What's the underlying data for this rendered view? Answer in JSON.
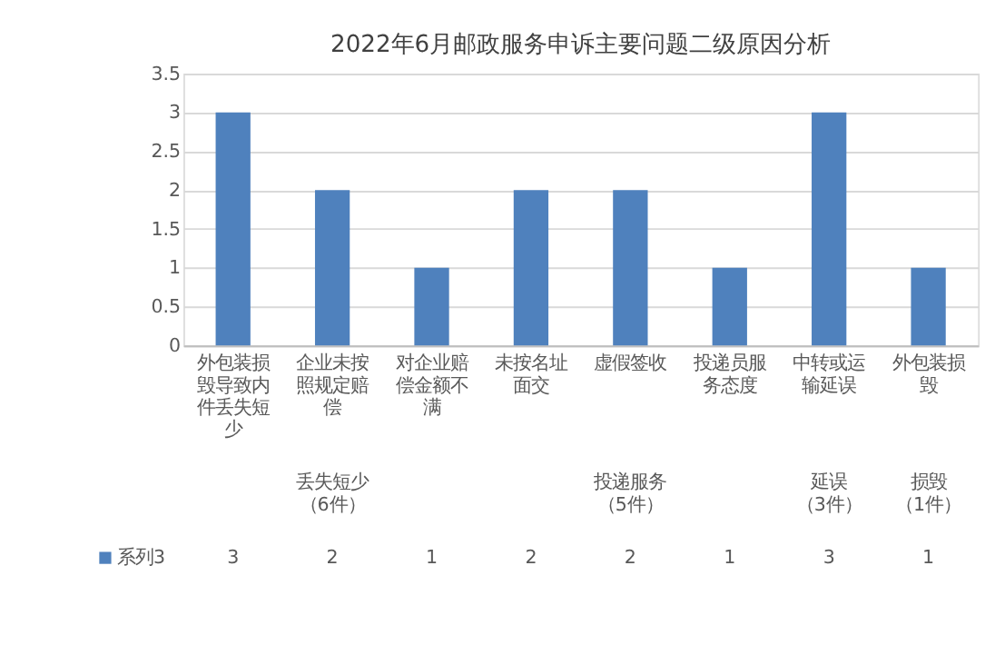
{
  "chart_data": {
    "type": "bar",
    "title": "2022年6月邮政服务申诉主要问题二级原因分析",
    "categories": [
      "外包装损毁导致内件丢失短少",
      "企业未按照规定赔偿",
      "对企业赔偿金额不满",
      "未按名址面交",
      "虚假签收",
      "投递员服务态度",
      "中转或运输延误",
      "外包装损毁"
    ],
    "series": [
      {
        "name": "系列3",
        "color": "#4f81bd",
        "values": [
          3,
          2,
          1,
          2,
          2,
          1,
          3,
          1
        ]
      }
    ],
    "ylim": [
      0,
      3.5
    ],
    "yticks": [
      0,
      0.5,
      1,
      1.5,
      2,
      2.5,
      3,
      3.5
    ],
    "grid": "y",
    "data_labels": true,
    "annotations": [
      "丢失短少（6件）",
      "投递服务（5件）",
      "延误（3件）",
      "损毁（1件）"
    ]
  }
}
